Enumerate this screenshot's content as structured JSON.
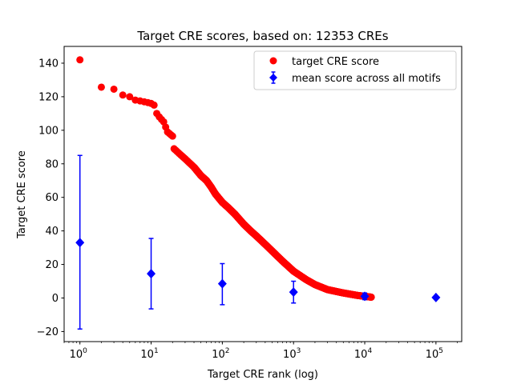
{
  "chart_data": {
    "type": "scatter",
    "title": "Target CRE scores, based on: 12353 CREs",
    "xlabel": "Target CRE rank (log)",
    "ylabel": "Target CRE score",
    "x_scale": "log",
    "xlim": [
      0.6,
      230000
    ],
    "ylim": [
      -26,
      150
    ],
    "x_ticks": [
      1,
      10,
      100,
      1000,
      10000,
      100000
    ],
    "x_tick_labels": [
      {
        "base": "10",
        "exp": "0"
      },
      {
        "base": "10",
        "exp": "1"
      },
      {
        "base": "10",
        "exp": "2"
      },
      {
        "base": "10",
        "exp": "3"
      },
      {
        "base": "10",
        "exp": "4"
      },
      {
        "base": "10",
        "exp": "5"
      }
    ],
    "y_ticks": [
      -20,
      0,
      20,
      40,
      60,
      80,
      100,
      120,
      140
    ],
    "y_tick_labels": [
      "−20",
      "0",
      "20",
      "40",
      "60",
      "80",
      "100",
      "120",
      "140"
    ],
    "grid": false,
    "legend_position": "top-right",
    "series": [
      {
        "name": "target CRE score",
        "kind": "scatter",
        "marker": "circle",
        "color": "#ff0000",
        "total_points": 12353,
        "key_points": [
          [
            1,
            142
          ],
          [
            2,
            125.7
          ],
          [
            3,
            124.5
          ],
          [
            4,
            121
          ],
          [
            5,
            120
          ],
          [
            6,
            118
          ],
          [
            7,
            117.5
          ],
          [
            8,
            117
          ],
          [
            9,
            116.5
          ],
          [
            10,
            116
          ],
          [
            11,
            115
          ],
          [
            12,
            110
          ],
          [
            13,
            108
          ],
          [
            15,
            105
          ],
          [
            17,
            99
          ],
          [
            20,
            96.5
          ],
          [
            21,
            89
          ],
          [
            25,
            86
          ],
          [
            30,
            83
          ],
          [
            40,
            78
          ],
          [
            50,
            73
          ],
          [
            60,
            70
          ],
          [
            70,
            66
          ],
          [
            80,
            62
          ],
          [
            100,
            57
          ],
          [
            120,
            54
          ],
          [
            150,
            50
          ],
          [
            200,
            44
          ],
          [
            250,
            40
          ],
          [
            300,
            37
          ],
          [
            400,
            32
          ],
          [
            500,
            28
          ],
          [
            700,
            22
          ],
          [
            1000,
            16
          ],
          [
            1500,
            11
          ],
          [
            2000,
            8
          ],
          [
            3000,
            5
          ],
          [
            5000,
            3
          ],
          [
            8000,
            1.5
          ],
          [
            10000,
            1
          ],
          [
            12353,
            0.5
          ]
        ]
      },
      {
        "name": "mean score across all motifs",
        "kind": "errorbar",
        "marker": "diamond",
        "color": "#0000ff",
        "points": [
          {
            "x": 1,
            "y": 33,
            "low": -18.5,
            "high": 85
          },
          {
            "x": 10,
            "y": 14.5,
            "low": -6.5,
            "high": 35.5
          },
          {
            "x": 100,
            "y": 8.5,
            "low": -4,
            "high": 20.5
          },
          {
            "x": 1000,
            "y": 3.5,
            "low": -3,
            "high": 10
          },
          {
            "x": 10000,
            "y": 1,
            "low": -1,
            "high": 3
          },
          {
            "x": 100000,
            "y": 0.3,
            "low": 0.3,
            "high": 0.3
          }
        ]
      }
    ]
  }
}
